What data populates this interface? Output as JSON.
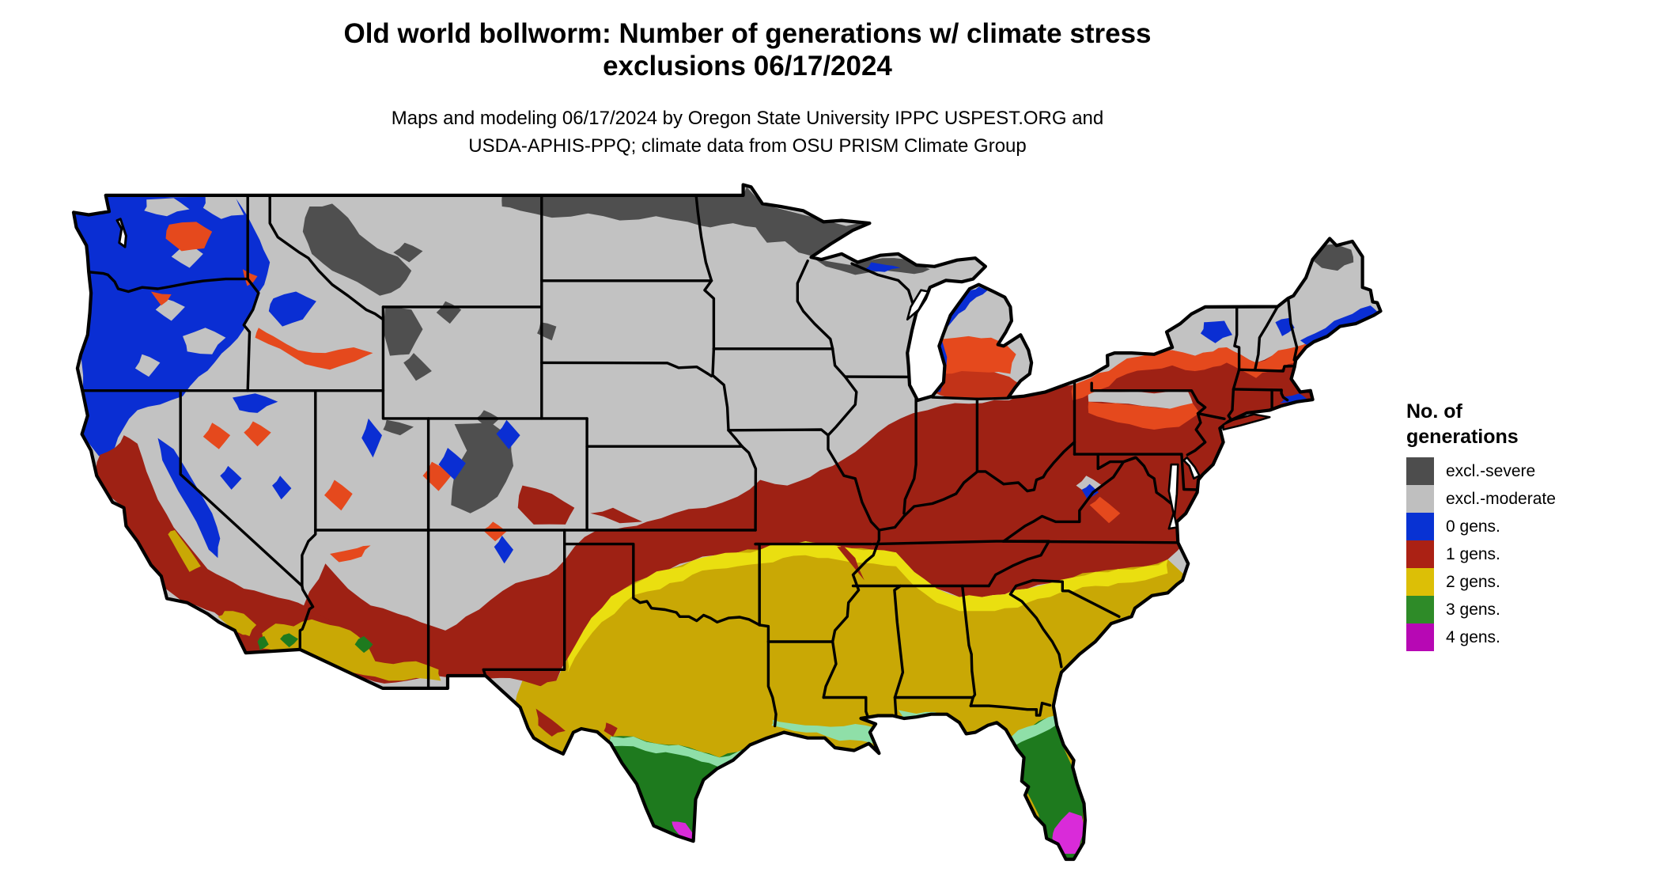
{
  "title": {
    "line1": "Old world bollworm: Number of generations w/ climate stress",
    "line2": "exclusions 06/17/2024"
  },
  "subtitle": {
    "line1": "Maps and modeling 06/17/2024 by Oregon State University IPPC USPEST.ORG and",
    "line2": "USDA-APHIS-PPQ; climate data from OSU PRISM Climate Group"
  },
  "legend": {
    "title_line1": "No. of",
    "title_line2": "generations",
    "items": [
      {
        "label": "excl.-severe",
        "color": "#4d4d4d"
      },
      {
        "label": "excl.-moderate",
        "color": "#bfbfbf"
      },
      {
        "label": "0 gens.",
        "color": "#0832d3"
      },
      {
        "label": "1 gens.",
        "color": "#ab2114"
      },
      {
        "label": "2 gens.",
        "color": "#dcbf06"
      },
      {
        "label": "3 gens.",
        "color": "#2e8b28"
      },
      {
        "label": "4 gens.",
        "color": "#b708b4"
      }
    ]
  },
  "map": {
    "name": "Continental United States: old world bollworm generations with climate stress exclusions",
    "date": "06/17/2024",
    "colors": {
      "water": "#ffffff",
      "border": "#000000",
      "moderate": "#c2c2c2",
      "severe": "#4f4f4f",
      "gens0": "#0a2ed3",
      "gens1": "#9e2114",
      "gens1_mid": "#c23318",
      "gens1_warm": "#e5491d",
      "gens2": "#c9a805",
      "gens2_bright": "#eadf10",
      "gens3": "#1e7a1e",
      "gens3_light": "#8fdfa8",
      "gens4": "#d92bd9",
      "gens4_dark": "#a80aa8"
    }
  }
}
